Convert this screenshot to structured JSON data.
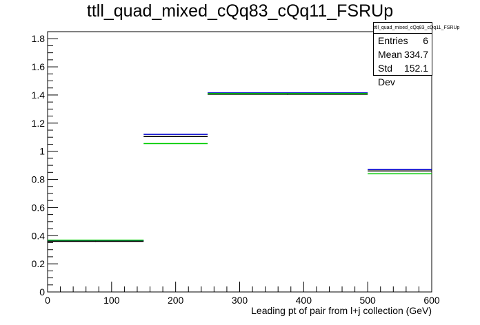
{
  "chart_data": {
    "type": "histogram",
    "title": "ttll_quad_mixed_cQq83_cQq11_FSRUp",
    "xlabel": "Leading pt of pair from l+j collection (GeV)",
    "ylabel": "",
    "xlim": [
      0,
      600
    ],
    "ylim": [
      0,
      1.85
    ],
    "xticks": [
      "0",
      "100",
      "200",
      "300",
      "400",
      "500",
      "600"
    ],
    "yticks": [
      "0",
      "0.2",
      "0.4",
      "0.6",
      "0.8",
      "1",
      "1.2",
      "1.4",
      "1.6",
      "1.8"
    ],
    "bins": [
      [
        0,
        150
      ],
      [
        150,
        250
      ],
      [
        250,
        500
      ],
      [
        500,
        600
      ]
    ],
    "series": [
      {
        "color": "#0000cc",
        "values": [
          0.365,
          1.12,
          1.415,
          0.87
        ]
      },
      {
        "color": "#000000",
        "values": [
          0.36,
          1.105,
          1.405,
          0.86
        ]
      },
      {
        "color": "#00cc00",
        "values": [
          0.368,
          1.055,
          1.41,
          0.84
        ]
      }
    ],
    "grid": false,
    "stats": {
      "name": "ttll_quad_mixed_cQq83_cQq11_FSRUp",
      "entries_label": "Entries",
      "entries": "6",
      "mean_label": "Mean",
      "mean": "334.7",
      "std_label": "Std Dev",
      "std": "152.1"
    }
  }
}
